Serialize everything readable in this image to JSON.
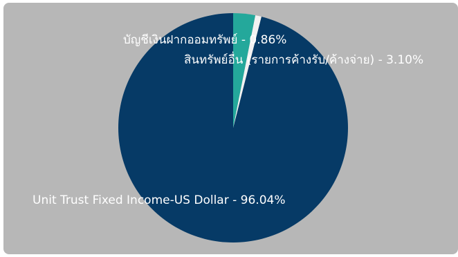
{
  "chart_data": {
    "type": "pie",
    "title": "",
    "slices": [
      {
        "label": "Unit Trust Fixed Income-US Dollar - 96.04%",
        "value": 96.04,
        "color": "#063a66"
      },
      {
        "label": "สินทรัพย์อื่น (รายการค้างรับ/ค้างจ่าย) - 3.10%",
        "value": 3.1,
        "color": "#24a89b"
      },
      {
        "label": "บัญชีเงินฝากออมทรัพย์ - 0.86%",
        "value": 0.86,
        "color": "#f2f2f2"
      }
    ],
    "legend": "none",
    "label_placement": "on-slice"
  },
  "colors": {
    "panel_background": "#b7b7b7",
    "label_text": "#ffffff"
  }
}
